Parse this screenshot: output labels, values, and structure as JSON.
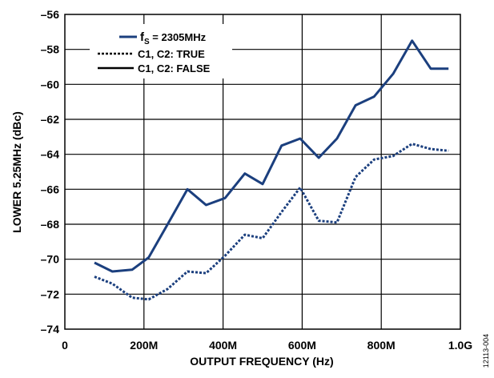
{
  "chart_data": {
    "type": "line",
    "xlabel": "OUTPUT FREQUENCY (Hz)",
    "ylabel": "LOWER 5.25MHz (dBc)",
    "xlim": [
      0,
      1000
    ],
    "ylim": [
      -74,
      -56
    ],
    "x_ticks": [
      {
        "value": 0,
        "label": "0"
      },
      {
        "value": 200,
        "label": "200M"
      },
      {
        "value": 400,
        "label": "400M"
      },
      {
        "value": 600,
        "label": "600M"
      },
      {
        "value": 800,
        "label": "800M"
      },
      {
        "value": 1000,
        "label": "1.0G"
      }
    ],
    "y_ticks": [
      {
        "value": -56,
        "label": "–56"
      },
      {
        "value": -58,
        "label": "–58"
      },
      {
        "value": -60,
        "label": "–60"
      },
      {
        "value": -62,
        "label": "–62"
      },
      {
        "value": -64,
        "label": "–64"
      },
      {
        "value": -66,
        "label": "–66"
      },
      {
        "value": -68,
        "label": "–68"
      },
      {
        "value": -70,
        "label": "–70"
      },
      {
        "value": -72,
        "label": "–72"
      },
      {
        "value": -74,
        "label": "–74"
      }
    ],
    "grid": true,
    "legend": {
      "position": "top-left",
      "entries": [
        {
          "label_main": "f",
          "label_sub": "S",
          "label_rest": " = 2305MHz",
          "style": "solid",
          "color": "#1b3f7e"
        },
        {
          "label": "C1, C2: TRUE",
          "style": "dashed",
          "color": "#000000"
        },
        {
          "label": "C1, C2: FALSE",
          "style": "solid",
          "color": "#000000"
        }
      ]
    },
    "series": [
      {
        "style": "solid",
        "color": "#1b3f7e",
        "x": [
          75,
          120,
          170,
          212,
          260,
          310,
          357,
          405,
          455,
          500,
          548,
          595,
          642,
          688,
          735,
          782,
          830,
          878,
          925,
          970
        ],
        "y": [
          -70.2,
          -70.7,
          -70.6,
          -69.9,
          -68.0,
          -66.0,
          -66.9,
          -66.5,
          -65.1,
          -65.7,
          -63.5,
          -63.1,
          -64.2,
          -63.1,
          -61.2,
          -60.7,
          -59.4,
          -57.5,
          -59.1,
          -59.1
        ]
      },
      {
        "style": "dashed",
        "color": "#1b3f7e",
        "x": [
          75,
          120,
          170,
          212,
          260,
          310,
          357,
          405,
          455,
          500,
          548,
          595,
          642,
          688,
          735,
          782,
          830,
          878,
          925,
          970
        ],
        "y": [
          -71.0,
          -71.4,
          -72.2,
          -72.3,
          -71.7,
          -70.7,
          -70.8,
          -69.8,
          -68.6,
          -68.8,
          -67.3,
          -65.9,
          -67.8,
          -67.9,
          -65.3,
          -64.3,
          -64.1,
          -63.4,
          -63.7,
          -63.8
        ]
      }
    ]
  },
  "figure_id": "12113-004"
}
